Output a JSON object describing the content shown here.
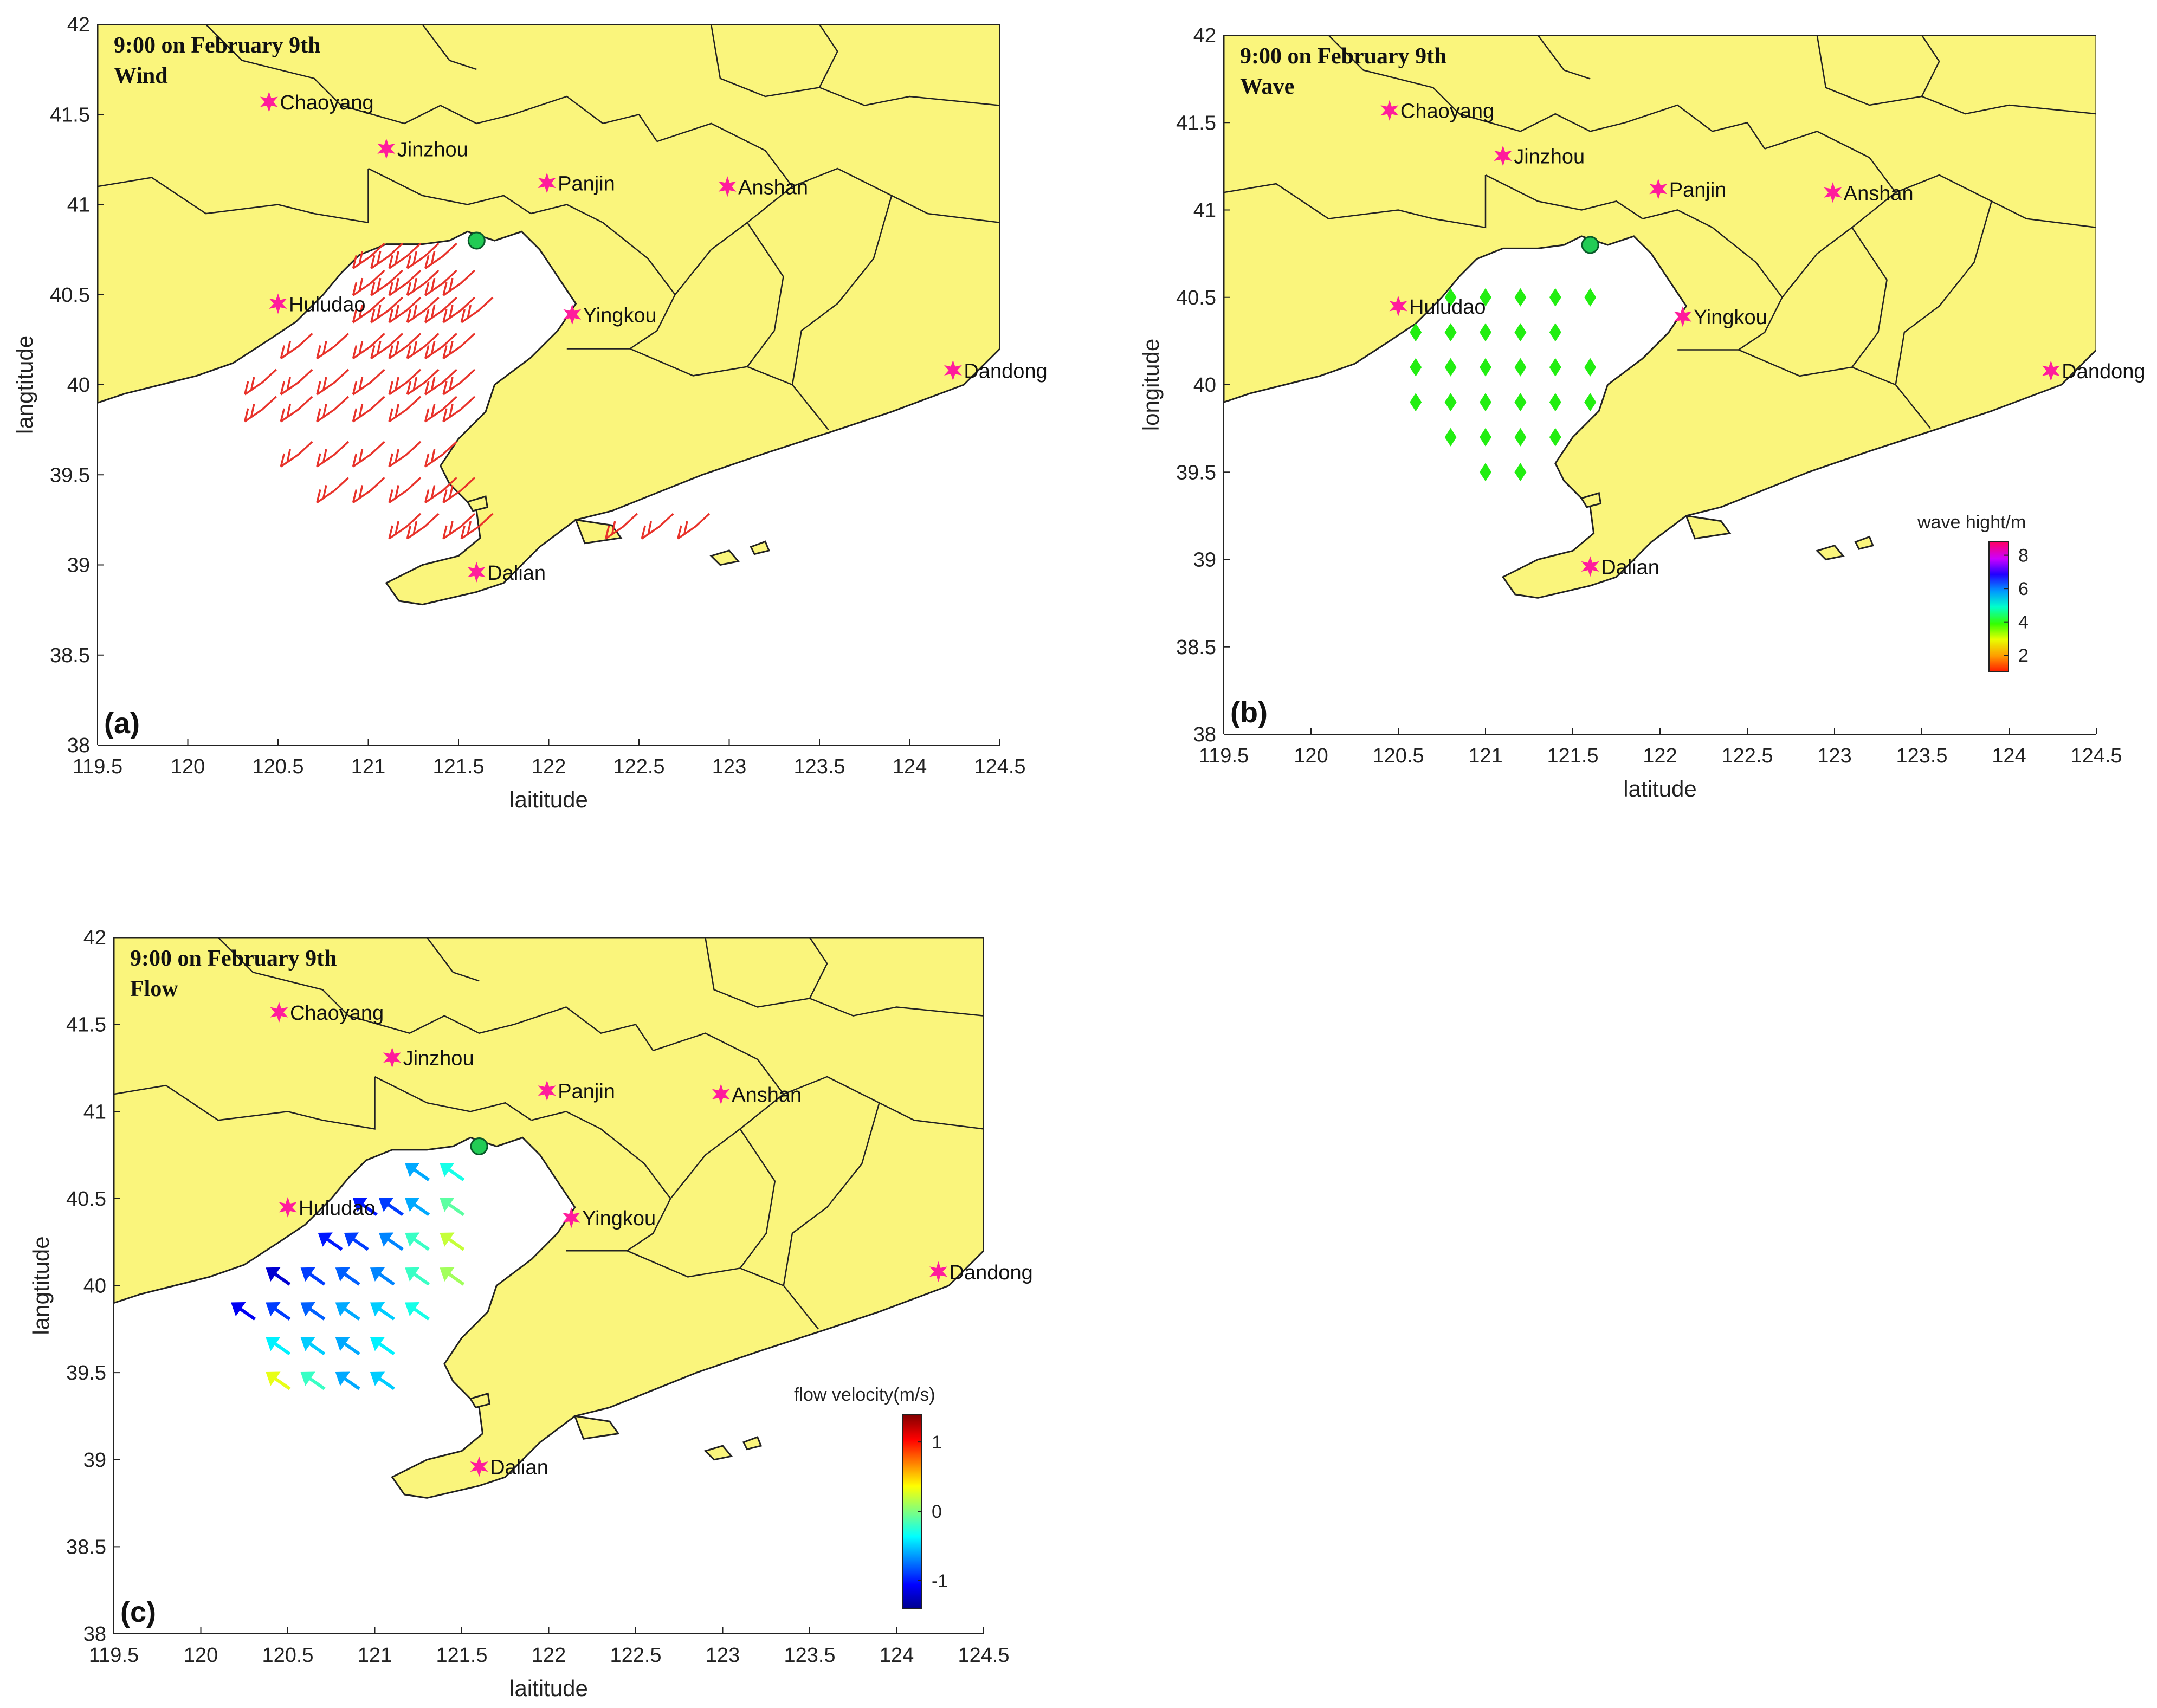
{
  "chart_data": [
    {
      "type": "map",
      "panel": "(a)",
      "annotation": [
        "9:00 on February 9th",
        "Wind"
      ],
      "xlabel": "laititude",
      "ylabel": "langtitude",
      "xlim": [
        119.5,
        124.5
      ],
      "ylim": [
        38,
        42
      ],
      "xticks": [
        "119.5",
        "120",
        "120.5",
        "121",
        "121.5",
        "122",
        "122.5",
        "123",
        "123.5",
        "124",
        "124.5"
      ],
      "yticks": [
        "38",
        "38.5",
        "39",
        "39.5",
        "40",
        "40.5",
        "41",
        "41.5",
        "42"
      ],
      "layer": "wind barbs",
      "barb_color": "#e8322a",
      "grid_points": [
        [
          121.0,
          40.7
        ],
        [
          121.1,
          40.7
        ],
        [
          121.2,
          40.7
        ],
        [
          121.3,
          40.7
        ],
        [
          121.4,
          40.7
        ],
        [
          121.0,
          40.55
        ],
        [
          121.1,
          40.55
        ],
        [
          121.2,
          40.55
        ],
        [
          121.3,
          40.55
        ],
        [
          121.4,
          40.55
        ],
        [
          121.5,
          40.55
        ],
        [
          121.0,
          40.4
        ],
        [
          121.1,
          40.4
        ],
        [
          121.2,
          40.4
        ],
        [
          121.3,
          40.4
        ],
        [
          121.4,
          40.4
        ],
        [
          121.5,
          40.4
        ],
        [
          121.6,
          40.4
        ],
        [
          120.6,
          40.2
        ],
        [
          120.8,
          40.2
        ],
        [
          121.0,
          40.2
        ],
        [
          121.1,
          40.2
        ],
        [
          121.2,
          40.2
        ],
        [
          121.3,
          40.2
        ],
        [
          121.4,
          40.2
        ],
        [
          121.5,
          40.2
        ],
        [
          120.4,
          40.0
        ],
        [
          120.6,
          40.0
        ],
        [
          120.8,
          40.0
        ],
        [
          121.0,
          40.0
        ],
        [
          121.2,
          40.0
        ],
        [
          121.3,
          40.0
        ],
        [
          121.4,
          40.0
        ],
        [
          121.5,
          40.0
        ],
        [
          120.4,
          39.85
        ],
        [
          120.6,
          39.85
        ],
        [
          120.8,
          39.85
        ],
        [
          121.0,
          39.85
        ],
        [
          121.2,
          39.85
        ],
        [
          121.4,
          39.85
        ],
        [
          121.5,
          39.85
        ],
        [
          120.6,
          39.6
        ],
        [
          120.8,
          39.6
        ],
        [
          121.0,
          39.6
        ],
        [
          121.2,
          39.6
        ],
        [
          121.4,
          39.6
        ],
        [
          120.8,
          39.4
        ],
        [
          121.0,
          39.4
        ],
        [
          121.2,
          39.4
        ],
        [
          121.4,
          39.4
        ],
        [
          121.5,
          39.4
        ],
        [
          121.2,
          39.2
        ],
        [
          121.3,
          39.2
        ],
        [
          121.5,
          39.2
        ],
        [
          121.6,
          39.2
        ],
        [
          122.4,
          39.2
        ],
        [
          122.6,
          39.2
        ],
        [
          122.8,
          39.2
        ]
      ]
    },
    {
      "type": "map",
      "panel": "(b)",
      "annotation": [
        "9:00 on February 9th",
        "Wave"
      ],
      "xlabel": "latitude",
      "ylabel": "longitude",
      "xlim": [
        119.5,
        124.5
      ],
      "ylim": [
        38,
        42
      ],
      "xticks": [
        "119.5",
        "120",
        "120.5",
        "121",
        "121.5",
        "122",
        "122.5",
        "123",
        "123.5",
        "124",
        "124.5"
      ],
      "yticks": [
        "38",
        "38.5",
        "39",
        "39.5",
        "40",
        "40.5",
        "41",
        "41.5",
        "42"
      ],
      "layer": "wave height markers",
      "marker_color": "#22ee11",
      "grid_points": [
        [
          120.8,
          40.5
        ],
        [
          121.0,
          40.5
        ],
        [
          121.2,
          40.5
        ],
        [
          121.4,
          40.5
        ],
        [
          121.6,
          40.5
        ],
        [
          120.6,
          40.3
        ],
        [
          120.8,
          40.3
        ],
        [
          121.0,
          40.3
        ],
        [
          121.2,
          40.3
        ],
        [
          121.4,
          40.3
        ],
        [
          120.6,
          40.1
        ],
        [
          120.8,
          40.1
        ],
        [
          121.0,
          40.1
        ],
        [
          121.2,
          40.1
        ],
        [
          121.4,
          40.1
        ],
        [
          121.6,
          40.1
        ],
        [
          120.6,
          39.9
        ],
        [
          120.8,
          39.9
        ],
        [
          121.0,
          39.9
        ],
        [
          121.2,
          39.9
        ],
        [
          121.4,
          39.9
        ],
        [
          121.6,
          39.9
        ],
        [
          120.8,
          39.7
        ],
        [
          121.0,
          39.7
        ],
        [
          121.2,
          39.7
        ],
        [
          121.4,
          39.7
        ],
        [
          121.0,
          39.5
        ],
        [
          121.2,
          39.5
        ]
      ],
      "colorbar": {
        "title": "wave hight/m",
        "ticks": [
          "8",
          "6",
          "4",
          "2"
        ],
        "range": [
          1,
          8.8
        ]
      }
    },
    {
      "type": "map",
      "panel": "(c)",
      "annotation": [
        "9:00 on February 9th",
        "Flow"
      ],
      "xlabel": "laititude",
      "ylabel": "langtitude",
      "xlim": [
        119.5,
        124.5
      ],
      "ylim": [
        38,
        42
      ],
      "xticks": [
        "119.5",
        "120",
        "120.5",
        "121",
        "121.5",
        "122",
        "122.5",
        "123",
        "123.5",
        "124",
        "124.5"
      ],
      "yticks": [
        "38",
        "38.5",
        "39",
        "39.5",
        "40",
        "40.5",
        "41",
        "41.5",
        "42"
      ],
      "layer": "flow velocity arrows",
      "vectors": [
        [
          121.25,
          40.65,
          -0.6
        ],
        [
          121.45,
          40.65,
          -0.3
        ],
        [
          120.95,
          40.45,
          -1.0
        ],
        [
          121.1,
          40.45,
          -0.9
        ],
        [
          121.25,
          40.45,
          -0.6
        ],
        [
          121.45,
          40.45,
          -0.1
        ],
        [
          120.75,
          40.25,
          -1.0
        ],
        [
          120.9,
          40.25,
          -0.9
        ],
        [
          121.1,
          40.25,
          -0.7
        ],
        [
          121.25,
          40.25,
          -0.2
        ],
        [
          121.45,
          40.25,
          0.2
        ],
        [
          120.45,
          40.05,
          -1.2
        ],
        [
          120.65,
          40.05,
          -0.9
        ],
        [
          120.85,
          40.05,
          -0.8
        ],
        [
          121.05,
          40.05,
          -0.7
        ],
        [
          121.25,
          40.05,
          -0.2
        ],
        [
          121.45,
          40.05,
          0.1
        ],
        [
          120.25,
          39.85,
          -1.1
        ],
        [
          120.45,
          39.85,
          -0.9
        ],
        [
          120.65,
          39.85,
          -0.8
        ],
        [
          120.85,
          39.85,
          -0.6
        ],
        [
          121.05,
          39.85,
          -0.5
        ],
        [
          121.25,
          39.85,
          -0.3
        ],
        [
          120.45,
          39.65,
          -0.4
        ],
        [
          120.65,
          39.65,
          -0.5
        ],
        [
          120.85,
          39.65,
          -0.6
        ],
        [
          121.05,
          39.65,
          -0.4
        ],
        [
          120.45,
          39.45,
          0.3
        ],
        [
          120.65,
          39.45,
          -0.2
        ],
        [
          120.85,
          39.45,
          -0.6
        ],
        [
          121.05,
          39.45,
          -0.5
        ]
      ],
      "colorbar": {
        "title": "flow velocity(m/s)",
        "ticks": [
          "1",
          "0",
          "-1"
        ],
        "range": [
          -1.4,
          1.4
        ]
      }
    }
  ],
  "cities": [
    {
      "name": "Chaoyang",
      "lon": 120.45,
      "lat": 41.57
    },
    {
      "name": "Jinzhou",
      "lon": 121.1,
      "lat": 41.31
    },
    {
      "name": "Panjin",
      "lon": 121.99,
      "lat": 41.12
    },
    {
      "name": "Anshan",
      "lon": 122.99,
      "lat": 41.1
    },
    {
      "name": "Huludao",
      "lon": 120.5,
      "lat": 40.45
    },
    {
      "name": "Yingkou",
      "lon": 122.13,
      "lat": 40.39
    },
    {
      "name": "Dandong",
      "lon": 124.24,
      "lat": 40.08
    },
    {
      "name": "Dalian",
      "lon": 121.6,
      "lat": 38.96
    }
  ],
  "station": {
    "lon": 121.6,
    "lat": 40.8,
    "color": "#22cc55"
  },
  "colors": {
    "land": "#faf57c",
    "sea": "#ffffff",
    "border": "#222222",
    "city_marker": "#ff1c9c"
  }
}
